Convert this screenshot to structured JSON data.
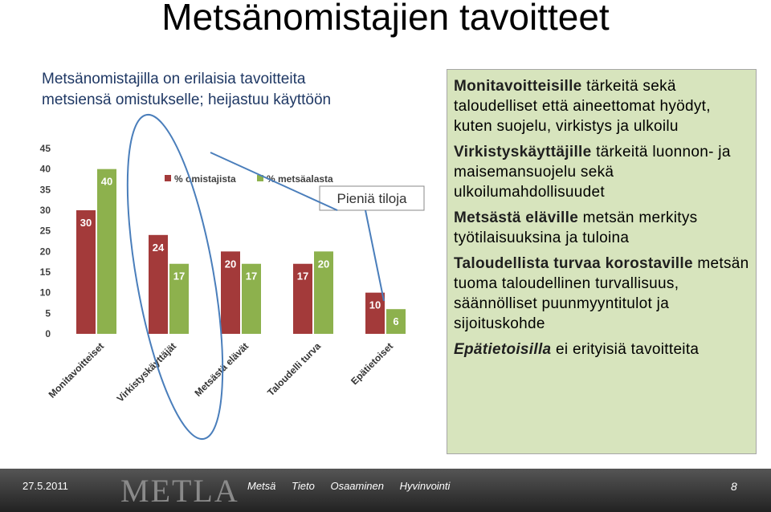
{
  "title": "Metsänomistajien tavoitteet",
  "subtitle": [
    "Metsänomistajilla on erilaisia tavoitteita",
    "metsiensä omistukselle; heijastuu käyttöön"
  ],
  "chart_data": {
    "type": "bar",
    "categories": [
      "Monitavoitteiset",
      "Virkistyskäyttäjät",
      "Metsästä elävät",
      "Taloudelli turva",
      "Epätietoiset"
    ],
    "series": [
      {
        "name": "% omistajista",
        "color": "#a33a3a",
        "values": [
          30,
          24,
          20,
          17,
          10
        ]
      },
      {
        "name": "% metsäalasta",
        "color": "#8db14d",
        "values": [
          40,
          17,
          17,
          20,
          6
        ]
      }
    ],
    "ylim": [
      0,
      45
    ],
    "yticks": [
      0,
      5,
      10,
      15,
      20,
      25,
      30,
      35,
      40,
      45
    ],
    "annotation": "Pieniä tiloja"
  },
  "right_box": {
    "items": [
      {
        "bold": "Monitavoitteisille",
        "text": "tärkeitä sekä taloudelliset että aineettomat hyödyt, kuten suojelu, virkistys ja ulkoilu"
      },
      {
        "bold": "Virkistyskäyttäjille",
        "text": "tärkeitä luonnon- ja maisemansuojelu sekä ulkoilumahdollisuudet"
      },
      {
        "bold": "Metsästä eläville",
        "text": "metsän merkitys työtilaisuuksina ja tuloina"
      },
      {
        "bold": "Taloudellista turvaa korostaville",
        "text": "metsän tuoma taloudellinen turvallisuus, säännölliset puunmyyntitulot ja sijoituskohde"
      },
      {
        "bold": "Epätietoisilla",
        "text": "ei erityisiä tavoitteita"
      }
    ]
  },
  "footer": {
    "date": "27.5.2011",
    "logo": "METLA",
    "tagline": [
      "Metsä",
      "Tieto",
      "Osaaminen",
      "Hyvinvointi"
    ],
    "page": "8"
  }
}
